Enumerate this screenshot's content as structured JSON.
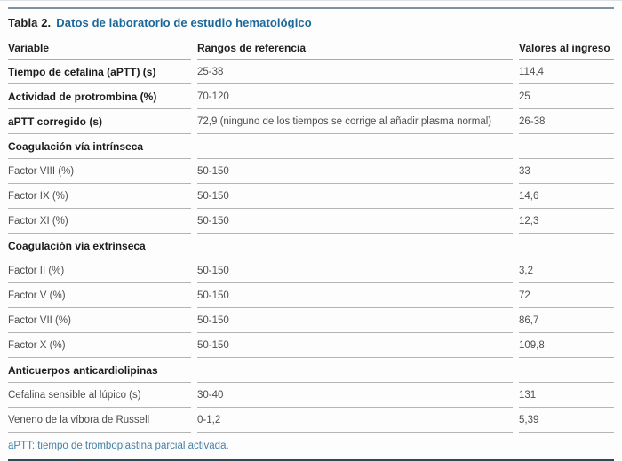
{
  "table": {
    "label": "Tabla 2.",
    "title": "Datos de laboratorio de estudio hematológico",
    "columns": [
      "Variable",
      "Rangos de referencia",
      "Valores al ingreso"
    ],
    "rows": [
      {
        "type": "data",
        "bold": true,
        "variable": "Tiempo de cefalina (aPTT) (s)",
        "range": "25-38",
        "value": "114,4"
      },
      {
        "type": "data",
        "bold": true,
        "variable": "Actividad de protrombina (%)",
        "range": "70-120",
        "value": "25"
      },
      {
        "type": "data",
        "bold": true,
        "variable": "aPTT corregido (s)",
        "range": "72,9 (ninguno de los tiempos se corrige al añadir plasma normal)",
        "value": "26-38"
      },
      {
        "type": "section",
        "variable": "Coagulación vía intrínseca"
      },
      {
        "type": "data",
        "variable": "Factor VIII (%)",
        "range": "50-150",
        "value": "33"
      },
      {
        "type": "data",
        "variable": "Factor IX (%)",
        "range": "50-150",
        "value": "14,6"
      },
      {
        "type": "data",
        "variable": "Factor XI (%)",
        "range": "50-150",
        "value": "12,3"
      },
      {
        "type": "section",
        "variable": "Coagulación vía extrínseca"
      },
      {
        "type": "data",
        "variable": "Factor II (%)",
        "range": "50-150",
        "value": "3,2"
      },
      {
        "type": "data",
        "variable": "Factor V (%)",
        "range": "50-150",
        "value": "72"
      },
      {
        "type": "data",
        "variable": "Factor VII (%)",
        "range": "50-150",
        "value": "86,7"
      },
      {
        "type": "data",
        "variable": "Factor X (%)",
        "range": "50-150",
        "value": "109,8"
      },
      {
        "type": "section",
        "variable": "Anticuerpos anticardiolipinas"
      },
      {
        "type": "data",
        "variable": "Cefalina sensible al lúpico (s)",
        "range": "30-40",
        "value": "131"
      },
      {
        "type": "data",
        "variable": "Veneno de la víbora de Russell",
        "range": "0-1,2",
        "value": "5,39"
      }
    ],
    "footnote": "aPTT: tiempo de tromboplastina parcial activada.",
    "colors": {
      "title_blue": "#1d689a",
      "footnote_blue": "#4581a5",
      "rule_top": "#7e92a1",
      "rule_dark": "#2e4a56",
      "row_divider": "#b4b4b4",
      "text_dark": "#1c1c1c",
      "text_body": "#4e4e4e"
    }
  }
}
